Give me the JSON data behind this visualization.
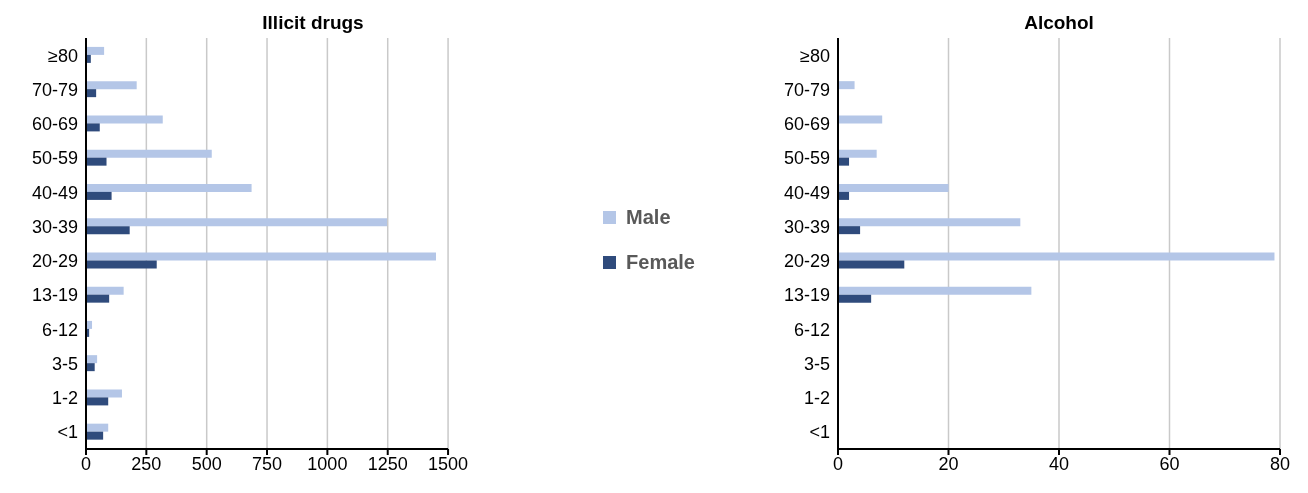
{
  "chart_data": [
    {
      "type": "bar",
      "orientation": "horizontal",
      "title": "Illicit drugs",
      "categories": [
        "≥80",
        "70-79",
        "60-69",
        "50-59",
        "40-49",
        "30-39",
        "20-29",
        "13-19",
        "6-12",
        "3-5",
        "1-2",
        "<1"
      ],
      "series": [
        {
          "name": "Male",
          "color": "#b4c6e7",
          "values": [
            75,
            210,
            318,
            521,
            686,
            1247,
            1450,
            156,
            25,
            46,
            149,
            92
          ]
        },
        {
          "name": "Female",
          "color": "#2f4b7c",
          "values": [
            20,
            42,
            57,
            85,
            106,
            181,
            293,
            96,
            13,
            36,
            92,
            71
          ]
        }
      ],
      "xlim": [
        0,
        1500
      ],
      "xticks": [
        0,
        250,
        500,
        750,
        1000,
        1250,
        1500
      ],
      "grid": "x",
      "legend": "right"
    },
    {
      "type": "bar",
      "orientation": "horizontal",
      "title": "Alcohol",
      "categories": [
        "≥80",
        "70-79",
        "60-69",
        "50-59",
        "40-49",
        "30-39",
        "20-29",
        "13-19",
        "6-12",
        "3-5",
        "1-2",
        "<1"
      ],
      "series": [
        {
          "color": "#b4c6e7",
          "values": [
            0,
            3,
            8,
            7,
            20,
            33,
            79,
            35,
            0,
            0,
            0,
            0
          ]
        },
        {
          "color": "#2f4b7c",
          "values": [
            0,
            0,
            0,
            2,
            2,
            4,
            12,
            6,
            0,
            0,
            0,
            0
          ]
        }
      ],
      "xlim": [
        0,
        80
      ],
      "xticks": [
        0,
        20,
        40,
        60,
        80
      ],
      "grid": "x"
    }
  ]
}
